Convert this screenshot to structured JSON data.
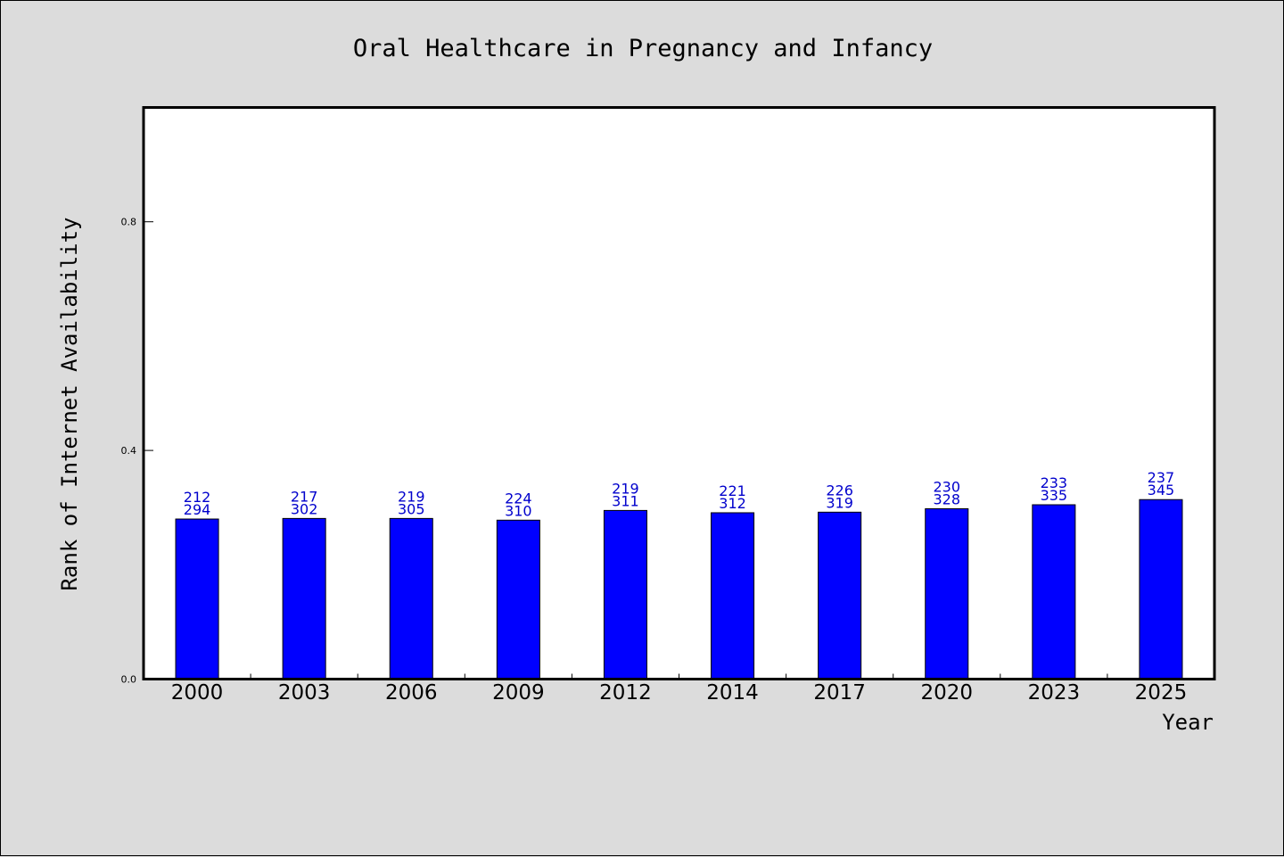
{
  "chart_data": {
    "type": "bar",
    "title": "Oral Healthcare in Pregnancy and Infancy",
    "xlabel": "Year",
    "ylabel": "Rank of Internet Availability",
    "categories": [
      "2000",
      "2003",
      "2006",
      "2009",
      "2012",
      "2014",
      "2017",
      "2020",
      "2023",
      "2025"
    ],
    "values": [
      0.28,
      0.281,
      0.281,
      0.278,
      0.295,
      0.291,
      0.292,
      0.298,
      0.305,
      0.314
    ],
    "annotations_top": [
      "212",
      "217",
      "219",
      "224",
      "219",
      "221",
      "226",
      "230",
      "233",
      "237"
    ],
    "annotations_bottom": [
      "294",
      "302",
      "305",
      "310",
      "311",
      "312",
      "319",
      "328",
      "335",
      "345"
    ],
    "ylim": [
      0,
      1.0
    ],
    "yticks": [
      0.0,
      0.4,
      0.8
    ],
    "ytick_labels": [
      "0.0",
      "0.4",
      "0.8"
    ],
    "grid": false,
    "colors": {
      "bar": "#0000ff",
      "bar_edge": "#000000",
      "annotation": "#0000cc",
      "plot_background": "#ffffff",
      "figure_background": "#dcdcdc"
    }
  }
}
